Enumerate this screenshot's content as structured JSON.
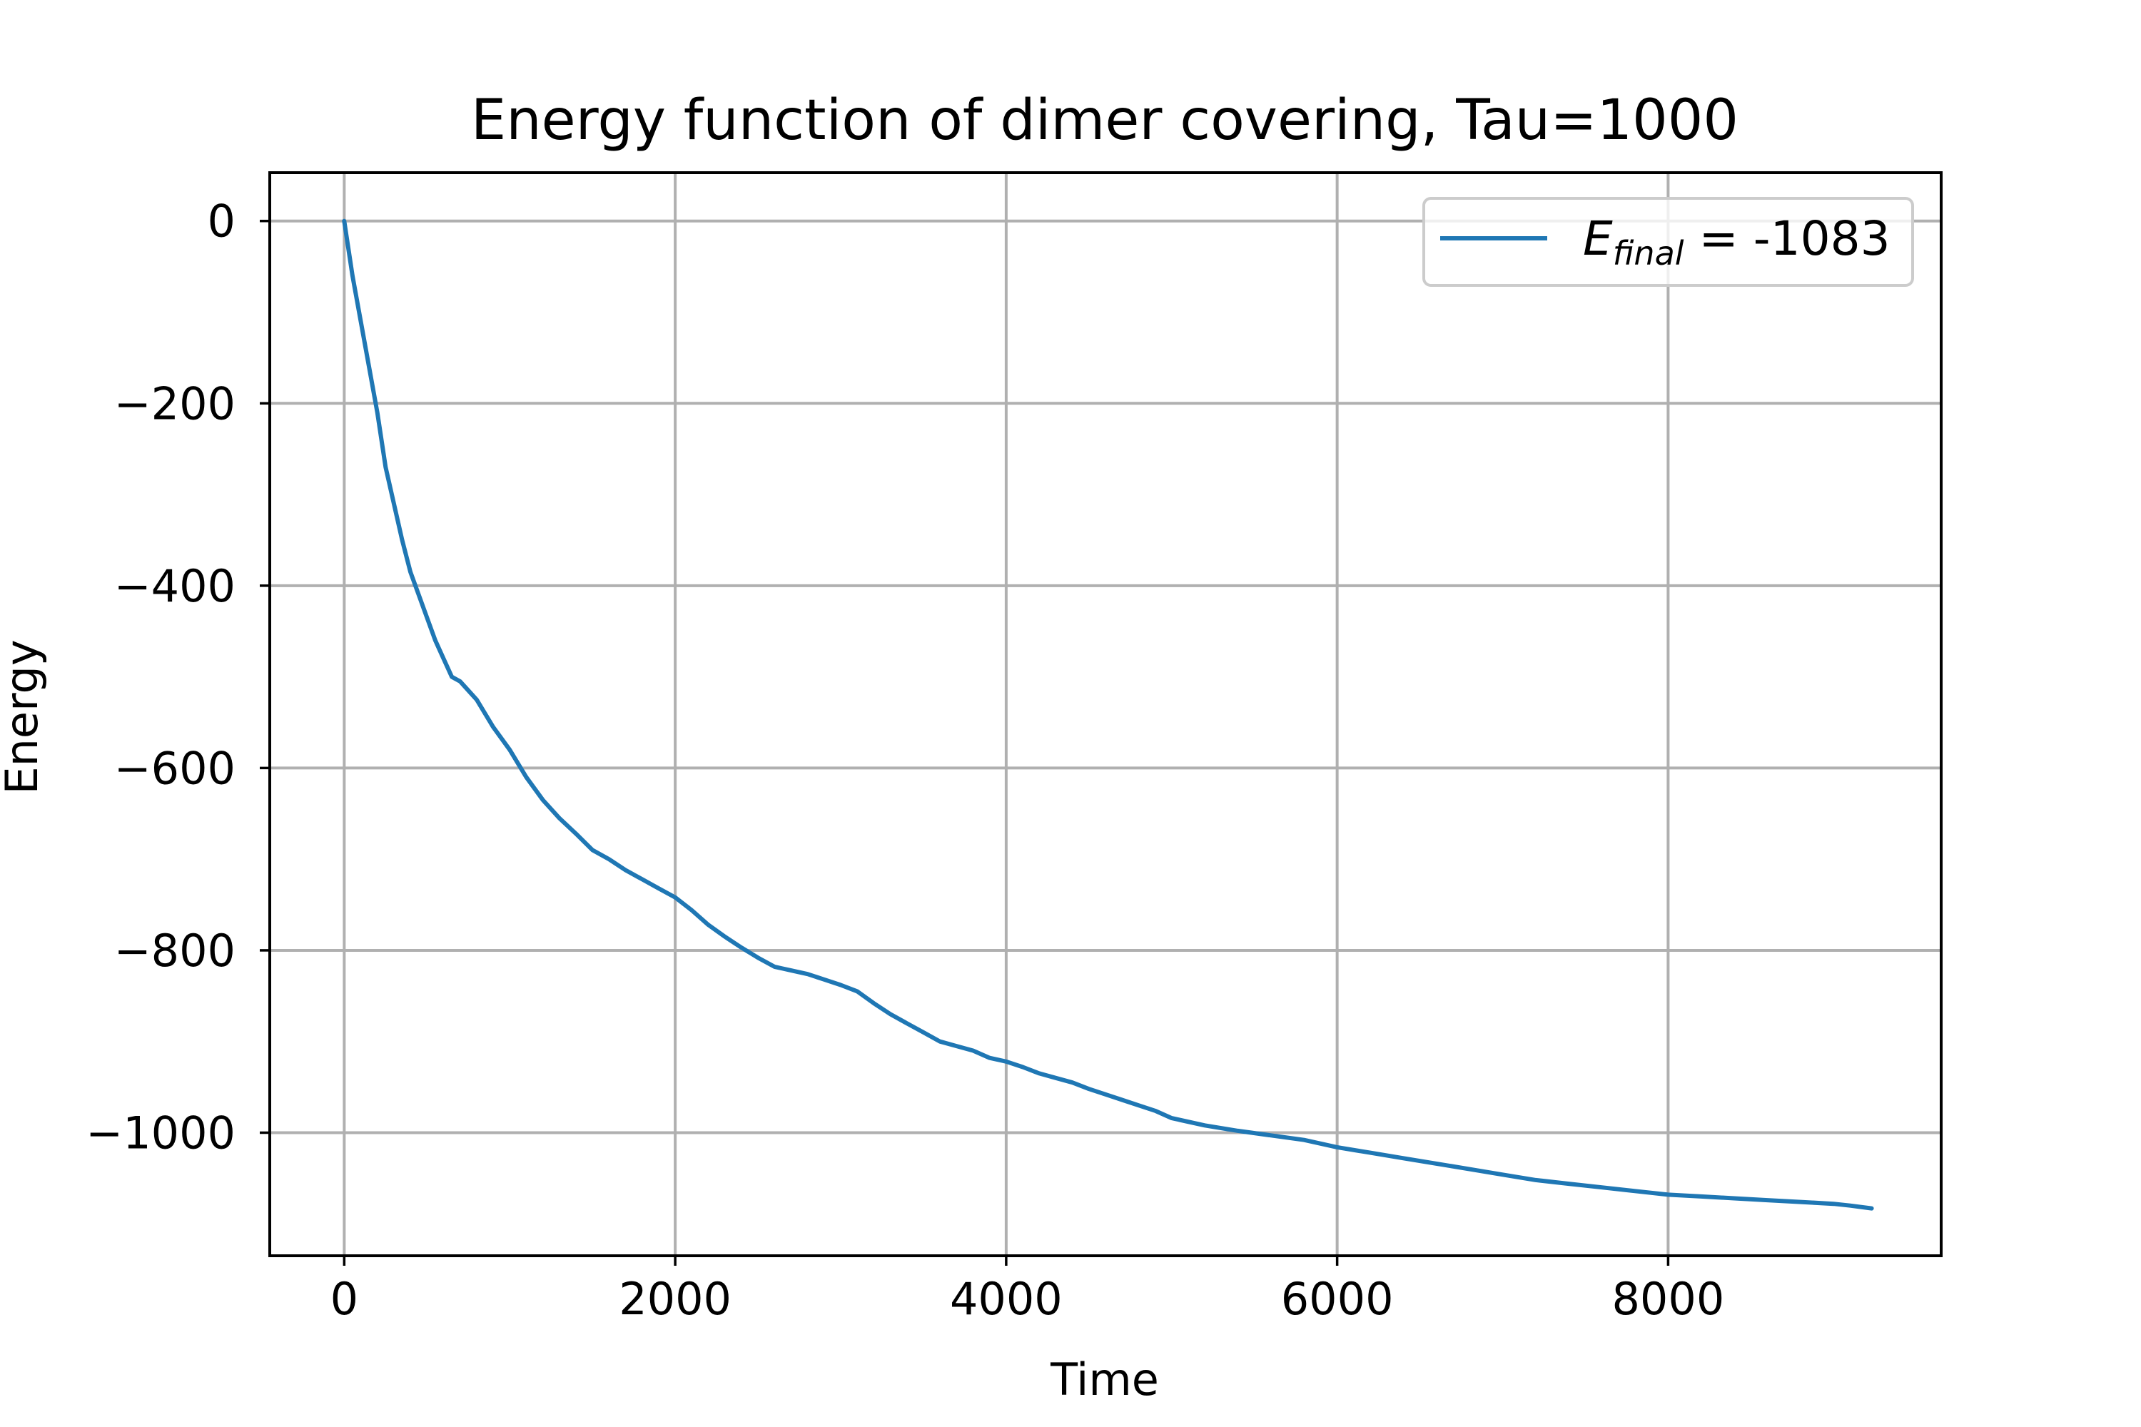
{
  "chart_data": {
    "type": "line",
    "title": "Energy function of dimer covering, Tau=1000",
    "xlabel": "Time",
    "ylabel": "Energy",
    "xlim": [
      -450,
      9650
    ],
    "ylim": [
      -1135,
      53
    ],
    "xticks": [
      0,
      2000,
      4000,
      6000,
      8000
    ],
    "xtick_labels": [
      "0",
      "2000",
      "4000",
      "6000",
      "8000"
    ],
    "yticks": [
      0,
      -200,
      -400,
      -600,
      -800,
      -1000
    ],
    "ytick_labels": [
      "0",
      "−200",
      "−400",
      "−600",
      "−800",
      "−1000"
    ],
    "grid": true,
    "legend": {
      "placement": "top-right",
      "entries": [
        {
          "label_main": "E",
          "label_sub": "final",
          "label_rest": " = -1083",
          "color": "#1f77b4"
        }
      ]
    },
    "series": [
      {
        "color": "#1f77b4",
        "x": [
          0,
          50,
          100,
          150,
          200,
          250,
          300,
          350,
          400,
          450,
          500,
          550,
          600,
          650,
          700,
          750,
          800,
          900,
          1000,
          1100,
          1200,
          1300,
          1400,
          1500,
          1600,
          1700,
          1800,
          1900,
          2000,
          2100,
          2200,
          2300,
          2400,
          2500,
          2600,
          2650,
          2700,
          2800,
          2900,
          3000,
          3100,
          3200,
          3300,
          3400,
          3500,
          3600,
          3700,
          3800,
          3900,
          4000,
          4100,
          4200,
          4300,
          4400,
          4500,
          4600,
          4700,
          4800,
          4900,
          5000,
          5200,
          5400,
          5600,
          5800,
          6000,
          6200,
          6400,
          6600,
          6800,
          7000,
          7200,
          7400,
          7600,
          7800,
          8000,
          8200,
          8400,
          8600,
          8800,
          9000,
          9100,
          9230
        ],
        "y": [
          0,
          -60,
          -110,
          -160,
          -210,
          -270,
          -310,
          -350,
          -385,
          -410,
          -435,
          -460,
          -480,
          -500,
          -505,
          -515,
          -525,
          -555,
          -580,
          -610,
          -635,
          -655,
          -672,
          -690,
          -700,
          -712,
          -722,
          -732,
          -742,
          -756,
          -772,
          -785,
          -797,
          -808,
          -818,
          -820,
          -822,
          -826,
          -832,
          -838,
          -845,
          -858,
          -870,
          -880,
          -890,
          -900,
          -905,
          -910,
          -918,
          -922,
          -928,
          -935,
          -940,
          -945,
          -952,
          -958,
          -964,
          -970,
          -976,
          -984,
          -992,
          -998,
          -1003,
          -1008,
          -1016,
          -1022,
          -1028,
          -1034,
          -1040,
          -1046,
          -1052,
          -1056,
          -1060,
          -1064,
          -1068,
          -1070,
          -1072,
          -1074,
          -1076,
          -1078,
          -1080,
          -1083
        ]
      }
    ]
  }
}
